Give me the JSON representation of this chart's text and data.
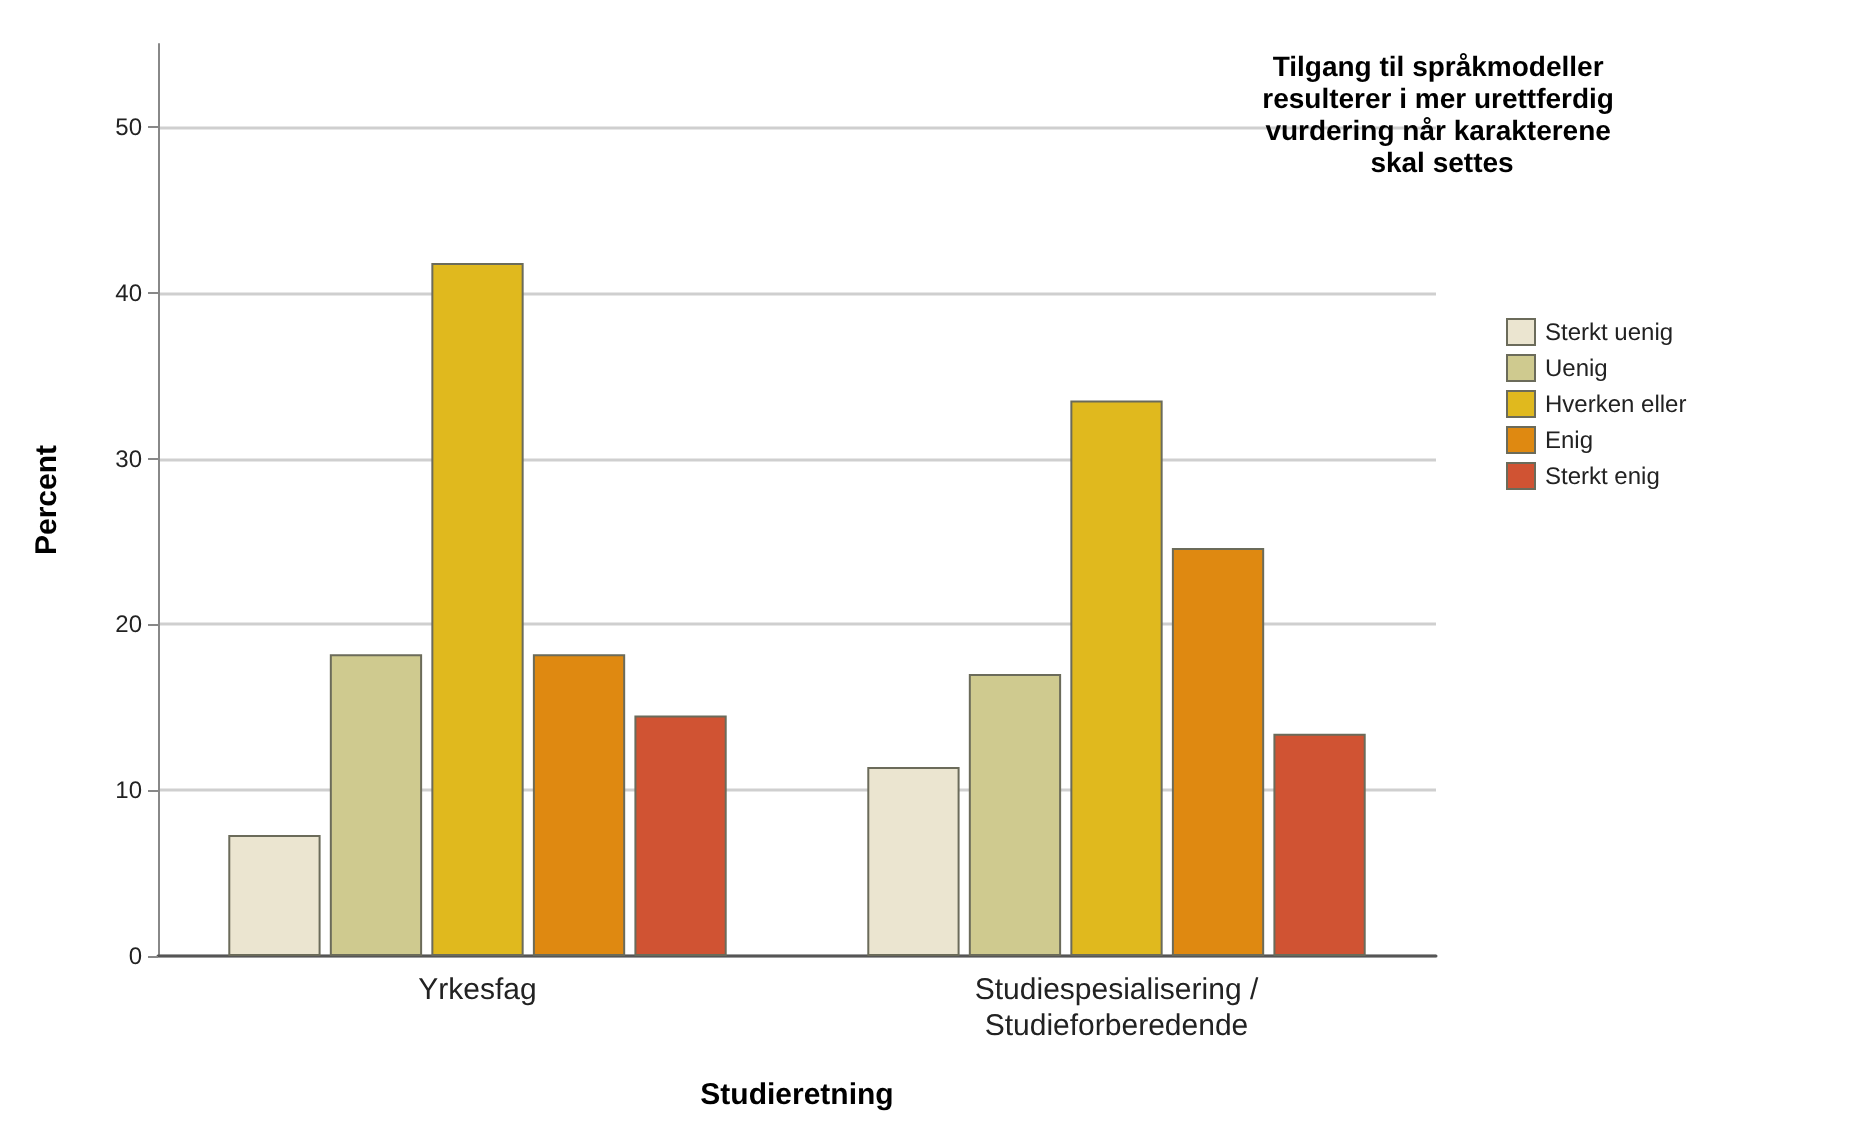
{
  "chart_data": {
    "type": "bar",
    "xlabel": "Studieretning",
    "ylabel": "Percent",
    "legend_title": "Tilgang til språkmodeller resulterer i mer urettferdig vurdering når karakterene skal settes",
    "categories": [
      "Yrkesfag",
      "Studiespesialisering /\nStudieforberedende"
    ],
    "series": [
      {
        "name": "Sterkt uenig",
        "color": "#ebe5d0",
        "values": [
          7.3,
          11.4
        ]
      },
      {
        "name": "Uenig",
        "color": "#cfca8f",
        "values": [
          18.2,
          17.0
        ]
      },
      {
        "name": "Hverken eller",
        "color": "#e0b91e",
        "values": [
          41.8,
          33.5
        ]
      },
      {
        "name": "Enig",
        "color": "#df8911",
        "values": [
          18.2,
          24.6
        ]
      },
      {
        "name": "Sterkt enig",
        "color": "#d05333",
        "values": [
          14.5,
          13.4
        ]
      }
    ],
    "ylim": [
      0,
      55
    ],
    "yticks": [
      0,
      10,
      20,
      30,
      40,
      50
    ],
    "grid": "y",
    "legend": "right"
  }
}
